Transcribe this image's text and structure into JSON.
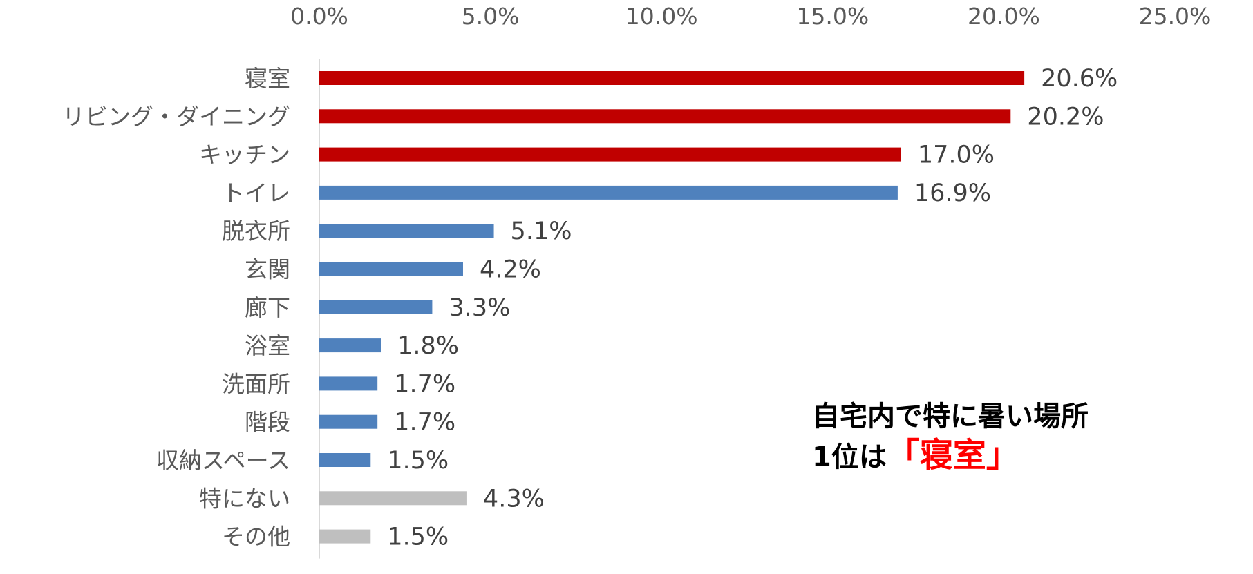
{
  "chart_data": {
    "type": "bar",
    "orientation": "horizontal",
    "categories": [
      "寝室",
      "リビング・ダイニング",
      "キッチン",
      "トイレ",
      "脱衣所",
      "玄関",
      "廊下",
      "浴室",
      "洗面所",
      "階段",
      "収納スペース",
      "特にない",
      "その他"
    ],
    "values": [
      20.6,
      20.2,
      17.0,
      16.9,
      5.1,
      4.2,
      3.3,
      1.8,
      1.7,
      1.7,
      1.5,
      4.3,
      1.5
    ],
    "data_labels": [
      "20.6%",
      "20.2%",
      "17.0%",
      "16.9%",
      "5.1%",
      "4.2%",
      "3.3%",
      "1.8%",
      "1.7%",
      "1.7%",
      "1.5%",
      "4.3%",
      "1.5%"
    ],
    "bar_colors": [
      "#c00000",
      "#c00000",
      "#c00000",
      "#4f81bd",
      "#4f81bd",
      "#4f81bd",
      "#4f81bd",
      "#4f81bd",
      "#4f81bd",
      "#4f81bd",
      "#4f81bd",
      "#bfbfbf",
      "#bfbfbf"
    ],
    "xlim": [
      0,
      25
    ],
    "x_ticks": [
      0,
      5,
      10,
      15,
      20,
      25
    ],
    "x_tick_labels": [
      "0.0%",
      "5.0%",
      "10.0%",
      "15.0%",
      "20.0%",
      "25.0%"
    ],
    "x_axis_position": "top",
    "grid": false,
    "title": "",
    "xlabel": "",
    "ylabel": ""
  },
  "annotation": {
    "line1": "自宅内で特に暑い場所",
    "line2_prefix": "1位は",
    "line2_highlight": "「寝室」",
    "highlight_color": "#ff0000"
  },
  "colors": {
    "tick_text": "#595959",
    "label_text": "#404040",
    "axis_line": "#d9d9d9"
  }
}
